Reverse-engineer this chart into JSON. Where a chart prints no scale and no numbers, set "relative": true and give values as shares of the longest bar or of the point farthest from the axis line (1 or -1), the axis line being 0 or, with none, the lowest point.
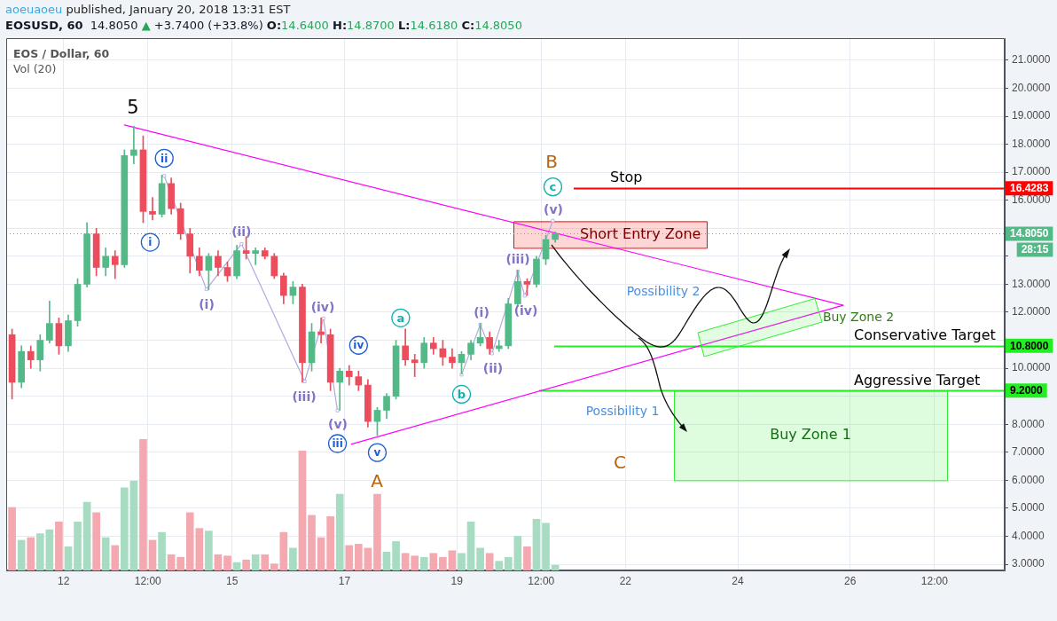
{
  "chart_data": [
    {
      "type": "candlestick",
      "title": "EOSUSD, 60",
      "subtitle": "14.8050 ▲ +3.7400 (+33.8%) O:14.6400 H:14.8700 L:14.6180 C:14.8050",
      "x": [
        "2018-01-11T02:00",
        "2018-01-11T06:00",
        "2018-01-11T10:00",
        "2018-01-11T14:00",
        "2018-01-11T18:00",
        "2018-01-11T22:00",
        "2018-01-12T02:00",
        "2018-01-12T06:00",
        "2018-01-12T10:00",
        "2018-01-12T14:00",
        "2018-01-12T18:00",
        "2018-01-12T22:00",
        "2018-01-13T02:00",
        "2018-01-13T06:00",
        "2018-01-13T10:00",
        "2018-01-13T14:00",
        "2018-01-13T18:00",
        "2018-01-13T22:00",
        "2018-01-14T02:00",
        "2018-01-14T06:00",
        "2018-01-14T10:00",
        "2018-01-14T14:00",
        "2018-01-14T18:00",
        "2018-01-14T22:00",
        "2018-01-15T02:00",
        "2018-01-15T06:00",
        "2018-01-15T10:00",
        "2018-01-15T14:00",
        "2018-01-15T18:00",
        "2018-01-15T22:00",
        "2018-01-16T02:00",
        "2018-01-16T06:00",
        "2018-01-16T10:00",
        "2018-01-16T14:00",
        "2018-01-16T18:00",
        "2018-01-16T22:00",
        "2018-01-17T02:00",
        "2018-01-17T06:00",
        "2018-01-17T10:00",
        "2018-01-17T14:00",
        "2018-01-17T18:00",
        "2018-01-17T22:00",
        "2018-01-18T02:00",
        "2018-01-18T06:00",
        "2018-01-18T10:00",
        "2018-01-18T14:00",
        "2018-01-18T18:00",
        "2018-01-18T22:00",
        "2018-01-19T02:00",
        "2018-01-19T06:00",
        "2018-01-19T10:00",
        "2018-01-19T14:00",
        "2018-01-19T18:00",
        "2018-01-19T22:00",
        "2018-01-20T02:00",
        "2018-01-20T06:00",
        "2018-01-20T10:00",
        "2018-01-20T14:00",
        "2018-01-20T18:00"
      ],
      "ohlc": [
        [
          11.2,
          11.4,
          8.9,
          9.5
        ],
        [
          9.5,
          10.8,
          9.3,
          10.6
        ],
        [
          10.6,
          10.8,
          10.0,
          10.3
        ],
        [
          10.3,
          11.2,
          9.9,
          11.0
        ],
        [
          11.0,
          12.4,
          10.9,
          11.6
        ],
        [
          11.6,
          11.8,
          10.5,
          10.8
        ],
        [
          10.8,
          11.9,
          10.6,
          11.7
        ],
        [
          11.7,
          13.2,
          11.5,
          13.0
        ],
        [
          13.0,
          15.2,
          12.9,
          14.8
        ],
        [
          14.8,
          15.0,
          13.3,
          13.6
        ],
        [
          13.6,
          14.3,
          13.3,
          14.0
        ],
        [
          14.0,
          14.2,
          13.2,
          13.7
        ],
        [
          13.7,
          17.8,
          13.6,
          17.6
        ],
        [
          17.6,
          18.65,
          17.3,
          17.8
        ],
        [
          17.8,
          18.3,
          15.2,
          15.6
        ],
        [
          15.6,
          16.1,
          15.3,
          15.5
        ],
        [
          15.5,
          16.9,
          15.4,
          16.6
        ],
        [
          16.6,
          16.8,
          15.5,
          15.7
        ],
        [
          15.7,
          15.9,
          14.6,
          14.8
        ],
        [
          14.8,
          15.0,
          13.4,
          14.0
        ],
        [
          14.0,
          14.3,
          13.3,
          13.5
        ],
        [
          13.5,
          14.1,
          12.8,
          14.0
        ],
        [
          14.0,
          14.2,
          13.3,
          13.6
        ],
        [
          13.6,
          13.8,
          13.1,
          13.3
        ],
        [
          13.3,
          14.4,
          13.2,
          14.2
        ],
        [
          14.2,
          14.7,
          13.9,
          14.1
        ],
        [
          14.1,
          14.3,
          13.7,
          14.2
        ],
        [
          14.2,
          14.3,
          13.9,
          14.0
        ],
        [
          14.0,
          14.1,
          13.2,
          13.3
        ],
        [
          13.3,
          13.4,
          12.3,
          12.6
        ],
        [
          12.6,
          13.1,
          12.3,
          12.9
        ],
        [
          12.9,
          13.0,
          9.5,
          10.2
        ],
        [
          10.2,
          11.6,
          9.9,
          11.3
        ],
        [
          11.3,
          11.8,
          10.9,
          11.2
        ],
        [
          11.2,
          11.4,
          9.2,
          9.5
        ],
        [
          9.5,
          10.0,
          8.5,
          9.9
        ],
        [
          9.9,
          10.1,
          9.4,
          9.7
        ],
        [
          9.7,
          9.9,
          9.2,
          9.4
        ],
        [
          9.4,
          9.6,
          7.9,
          8.1
        ],
        [
          8.1,
          8.6,
          7.6,
          8.5
        ],
        [
          8.5,
          9.1,
          8.2,
          9.0
        ],
        [
          9.0,
          11.0,
          8.9,
          10.8
        ],
        [
          10.8,
          11.4,
          10.1,
          10.3
        ],
        [
          10.3,
          10.5,
          9.7,
          10.2
        ],
        [
          10.2,
          11.1,
          10.0,
          10.9
        ],
        [
          10.9,
          11.1,
          10.5,
          10.7
        ],
        [
          10.7,
          11.0,
          10.1,
          10.4
        ],
        [
          10.4,
          10.7,
          10.0,
          10.2
        ],
        [
          10.2,
          10.6,
          9.8,
          10.5
        ],
        [
          10.5,
          11.0,
          10.3,
          10.9
        ],
        [
          10.9,
          11.6,
          10.8,
          11.1
        ],
        [
          11.1,
          11.3,
          10.5,
          10.7
        ],
        [
          10.7,
          11.0,
          10.6,
          10.8
        ],
        [
          10.8,
          12.5,
          10.7,
          12.3
        ],
        [
          12.3,
          13.5,
          12.2,
          13.1
        ],
        [
          13.1,
          13.2,
          12.6,
          13.0
        ],
        [
          13.0,
          14.0,
          12.9,
          13.9
        ],
        [
          13.9,
          14.75,
          13.7,
          14.6
        ],
        [
          14.6,
          14.87,
          14.5,
          14.805
        ]
      ],
      "colors": [
        "#eb4d5c",
        "#53b987",
        "#eb4d5c",
        "#53b987",
        "#53b987",
        "#eb4d5c",
        "#53b987",
        "#53b987",
        "#53b987",
        "#eb4d5c",
        "#53b987",
        "#eb4d5c",
        "#53b987",
        "#53b987",
        "#eb4d5c",
        "#eb4d5c",
        "#53b987",
        "#eb4d5c",
        "#eb4d5c",
        "#eb4d5c",
        "#eb4d5c",
        "#53b987",
        "#eb4d5c",
        "#eb4d5c",
        "#53b987",
        "#eb4d5c",
        "#53b987",
        "#eb4d5c",
        "#eb4d5c",
        "#eb4d5c",
        "#53b987",
        "#eb4d5c",
        "#53b987",
        "#eb4d5c",
        "#eb4d5c",
        "#53b987",
        "#eb4d5c",
        "#eb4d5c",
        "#eb4d5c",
        "#53b987",
        "#53b987",
        "#53b987",
        "#eb4d5c",
        "#eb4d5c",
        "#53b987",
        "#eb4d5c",
        "#eb4d5c",
        "#eb4d5c",
        "#53b987",
        "#53b987",
        "#53b987",
        "#eb4d5c",
        "#53b987",
        "#53b987",
        "#53b987",
        "#eb4d5c",
        "#53b987",
        "#53b987",
        "#53b987"
      ],
      "series": [
        {
          "type": "line",
          "color": "#ff00ff",
          "x": [
            "2018-01-13T02:00",
            "2018-01-25T21:00"
          ],
          "values": [
            18.69,
            12.25
          ]
        },
        {
          "type": "line",
          "color": "#ff00ff",
          "x": [
            "2018-01-17T03:00",
            "2018-01-25T21:00"
          ],
          "values": [
            7.29,
            12.25
          ]
        },
        {
          "type": "line",
          "color": "#b3a7e0",
          "marker": "square",
          "x": [
            "2018-01-13T19:00",
            "2018-01-14T13:00",
            "2018-01-15T04:00",
            "2018-01-16T07:00",
            "2018-01-16T15:00",
            "2018-01-16T21:00"
          ],
          "values": [
            16.87,
            12.82,
            14.44,
            9.53,
            11.78,
            8.49
          ]
        },
        {
          "type": "line",
          "color": "#b3a7e0",
          "marker": "square",
          "x": [
            "2018-01-19T02:00",
            "2018-01-19T10:00",
            "2018-01-19T15:00",
            "2018-01-20T02:00",
            "2018-01-20T05:00",
            "2018-01-20T17:00"
          ],
          "values": [
            9.77,
            11.56,
            10.53,
            13.46,
            12.59,
            15.27
          ]
        }
      ],
      "xlim": [
        "2018-01-10T23:30",
        "2018-01-28T18:00"
      ],
      "xticks": [
        {
          "value": "2018-01-12T00:00",
          "label": "12"
        },
        {
          "value": "2018-01-13T12:00",
          "label": "12:00"
        },
        {
          "value": "2018-01-15T00:00",
          "label": "15"
        },
        {
          "value": "2018-01-17T00:00",
          "label": "17"
        },
        {
          "value": "2018-01-19T00:00",
          "label": "19"
        },
        {
          "value": "2018-01-20T12:00",
          "label": "12:00"
        },
        {
          "value": "2018-01-22T00:00",
          "label": "22"
        },
        {
          "value": "2018-01-24T00:00",
          "label": "24"
        },
        {
          "value": "2018-01-26T00:00",
          "label": "26"
        },
        {
          "value": "2018-01-27T12:00",
          "label": "12:00"
        }
      ],
      "ylim": [
        2.78,
        21.79
      ],
      "yticks": [
        {
          "value": 3,
          "label": "3.0000"
        },
        {
          "value": 4,
          "label": "4.0000"
        },
        {
          "value": 5,
          "label": "5.0000"
        },
        {
          "value": 6,
          "label": "6.0000"
        },
        {
          "value": 7,
          "label": "7.0000"
        },
        {
          "value": 8,
          "label": "8.0000"
        },
        {
          "value": 9,
          "label": null
        },
        {
          "value": 10,
          "label": "10.0000"
        },
        {
          "value": 11,
          "label": null
        },
        {
          "value": 12,
          "label": "12.0000"
        },
        {
          "value": 13,
          "label": "13.0000"
        },
        {
          "value": 14,
          "label": null
        },
        {
          "value": 15,
          "label": null
        },
        {
          "value": 16,
          "label": "16.0000"
        },
        {
          "value": 17,
          "label": "17.0000"
        },
        {
          "value": 18,
          "label": "18.0000"
        },
        {
          "value": 19,
          "label": "19.0000"
        },
        {
          "value": 20,
          "label": "20.0000"
        },
        {
          "value": 21,
          "label": "21.0000"
        }
      ],
      "grid": true,
      "ref_lines": [
        {
          "axis": "y",
          "value": 16.4283,
          "label": "Stop",
          "color": "#ff0000"
        },
        {
          "axis": "y",
          "value": 14.805,
          "color": "#53b987",
          "line_style": "dotted"
        },
        {
          "axis": "y",
          "value": 10.8,
          "label": "Conservative Target",
          "color": "#22ee22"
        },
        {
          "axis": "y",
          "value": 9.2,
          "label": "Aggressive Target",
          "color": "#22ee22"
        }
      ],
      "bands": [
        {
          "axis": "y",
          "from": 14.3,
          "to": 15.25,
          "label": "Short Entry Zone",
          "color": "#ff0000"
        },
        {
          "axis": "y",
          "from": 6,
          "to": 9.2,
          "label": "Buy Zone 1",
          "color": "#33ee33"
        }
      ],
      "annotations": [
        "aoeuaoeu published, January 20, 2018 13:31 EST",
        "EOS / Dollar, 60",
        "5",
        {
          "text": "i",
          "x": "2018-01-13T13:00",
          "y": 14.5
        },
        {
          "text": "ii",
          "x": "2018-01-13T19:00",
          "y": 17.5
        },
        "(i)",
        {
          "text": "(ii)",
          "x": "2018-01-15T04:00",
          "y": 14.88
        },
        "(iii)",
        "(iv)",
        "(v)",
        {
          "text": "iii",
          "x": "2018-01-16T21:00",
          "y": 7.31
        },
        {
          "text": "iv",
          "x": "2018-01-17T06:00",
          "y": 10.82
        },
        {
          "text": "v",
          "x": "2018-01-17T14:00",
          "y": 6.99
        },
        "A",
        {
          "text": "a",
          "x": "2018-01-18T00:00",
          "y": 11.8
        },
        {
          "text": "b",
          "x": "2018-01-19T02:00",
          "y": 9.07
        },
        "(i)",
        "(ii)",
        "(iii)",
        "(iv)",
        "(v)",
        {
          "text": "c",
          "x": "2018-01-20T17:00",
          "y": 16.48
        },
        "B",
        "C",
        "Possibility 2",
        "Possibility 1",
        "Buy Zone 2",
        "16.4283",
        "14.8050",
        "28:15",
        "10.8000",
        "9.2000"
      ]
    },
    {
      "type": "bar",
      "title": "Vol (20)",
      "relative": true,
      "x": [
        "2018-01-11T02:00",
        "2018-01-11T06:00",
        "2018-01-11T10:00",
        "2018-01-11T14:00",
        "2018-01-11T18:00",
        "2018-01-11T22:00",
        "2018-01-12T02:00",
        "2018-01-12T06:00",
        "2018-01-12T10:00",
        "2018-01-12T14:00",
        "2018-01-12T18:00",
        "2018-01-12T22:00",
        "2018-01-13T02:00",
        "2018-01-13T06:00",
        "2018-01-13T10:00",
        "2018-01-13T14:00",
        "2018-01-13T18:00",
        "2018-01-13T22:00",
        "2018-01-14T02:00",
        "2018-01-14T06:00",
        "2018-01-14T10:00",
        "2018-01-14T14:00",
        "2018-01-14T18:00",
        "2018-01-14T22:00",
        "2018-01-15T02:00",
        "2018-01-15T06:00",
        "2018-01-15T10:00",
        "2018-01-15T14:00",
        "2018-01-15T18:00",
        "2018-01-15T22:00",
        "2018-01-16T02:00",
        "2018-01-16T06:00",
        "2018-01-16T10:00",
        "2018-01-16T14:00",
        "2018-01-16T18:00",
        "2018-01-16T22:00",
        "2018-01-17T02:00",
        "2018-01-17T06:00",
        "2018-01-17T10:00",
        "2018-01-17T14:00",
        "2018-01-17T18:00",
        "2018-01-17T22:00",
        "2018-01-18T02:00",
        "2018-01-18T06:00",
        "2018-01-18T10:00",
        "2018-01-18T14:00",
        "2018-01-18T18:00",
        "2018-01-18T22:00",
        "2018-01-19T02:00",
        "2018-01-19T06:00",
        "2018-01-19T10:00",
        "2018-01-19T14:00",
        "2018-01-19T18:00",
        "2018-01-19T22:00",
        "2018-01-20T02:00",
        "2018-01-20T06:00",
        "2018-01-20T10:00",
        "2018-01-20T14:00",
        "2018-01-20T18:00"
      ],
      "values": [
        0.48,
        0.23,
        0.25,
        0.28,
        0.31,
        0.37,
        0.18,
        0.37,
        0.52,
        0.44,
        0.25,
        0.19,
        0.63,
        0.68,
        1,
        0.23,
        0.29,
        0.12,
        0.1,
        0.44,
        0.32,
        0.3,
        0.12,
        0.11,
        0.06,
        0.08,
        0.12,
        0.12,
        0.05,
        0.29,
        0.17,
        0.91,
        0.42,
        0.25,
        0.41,
        0.58,
        0.19,
        0.2,
        0.17,
        0.58,
        0.14,
        0.22,
        0.13,
        0.11,
        0.1,
        0.13,
        0.1,
        0.15,
        0.13,
        0.37,
        0.17,
        0.13,
        0.07,
        0.1,
        0.26,
        0.18,
        0.39,
        0.36,
        0.04
      ],
      "colors": [
        "#f4a9b0",
        "#a8dcc2",
        "#f4a9b0",
        "#a8dcc2",
        "#a8dcc2",
        "#f4a9b0",
        "#a8dcc2",
        "#a8dcc2",
        "#a8dcc2",
        "#f4a9b0",
        "#a8dcc2",
        "#f4a9b0",
        "#a8dcc2",
        "#a8dcc2",
        "#f4a9b0",
        "#f4a9b0",
        "#a8dcc2",
        "#f4a9b0",
        "#f4a9b0",
        "#f4a9b0",
        "#f4a9b0",
        "#a8dcc2",
        "#f4a9b0",
        "#f4a9b0",
        "#a8dcc2",
        "#f4a9b0",
        "#a8dcc2",
        "#f4a9b0",
        "#f4a9b0",
        "#f4a9b0",
        "#a8dcc2",
        "#f4a9b0",
        "#f4a9b0",
        "#f4a9b0",
        "#f4a9b0",
        "#a8dcc2",
        "#f4a9b0",
        "#f4a9b0",
        "#f4a9b0",
        "#f4a9b0",
        "#a8dcc2",
        "#a8dcc2",
        "#f4a9b0",
        "#f4a9b0",
        "#a8dcc2",
        "#f4a9b0",
        "#f4a9b0",
        "#f4a9b0",
        "#a8dcc2",
        "#a8dcc2",
        "#a8dcc2",
        "#f4a9b0",
        "#a8dcc2",
        "#a8dcc2",
        "#a8dcc2",
        "#f4a9b0",
        "#a8dcc2",
        "#a8dcc2",
        "#a8dcc2"
      ],
      "xlim": [
        "2018-01-10T23:30",
        "2018-01-28T18:00"
      ]
    }
  ]
}
